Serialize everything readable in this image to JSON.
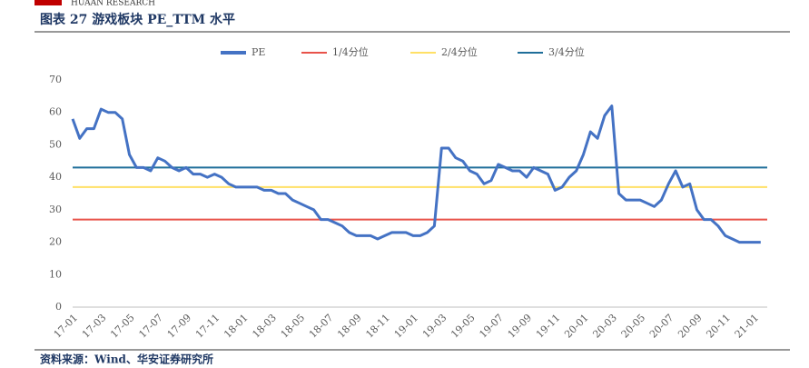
{
  "header": {
    "brand": "HUAAN RESEARCH"
  },
  "chart_data": {
    "type": "line",
    "title": "图表 27   游戏板块 PE_TTM 水平",
    "categories": [
      "17-01",
      null,
      null,
      null,
      "17-03",
      null,
      null,
      null,
      "17-05",
      null,
      null,
      null,
      "17-07",
      null,
      null,
      null,
      "17-09",
      null,
      null,
      null,
      "17-11",
      null,
      null,
      null,
      "18-01",
      null,
      null,
      null,
      "18-03",
      null,
      null,
      null,
      "18-05",
      null,
      null,
      null,
      "18-07",
      null,
      null,
      null,
      "18-09",
      null,
      null,
      null,
      "18-11",
      null,
      null,
      null,
      "19-01",
      null,
      null,
      null,
      "19-03",
      null,
      null,
      null,
      "19-05",
      null,
      null,
      null,
      "19-07",
      null,
      null,
      null,
      "19-09",
      null,
      null,
      null,
      "19-11",
      null,
      null,
      null,
      "20-01",
      null,
      null,
      null,
      "20-03",
      null,
      null,
      null,
      "20-05",
      null,
      null,
      null,
      "20-07",
      null,
      null,
      null,
      "20-09",
      null,
      null,
      null,
      "20-11",
      null,
      null,
      null,
      "21-01",
      null
    ],
    "series": [
      {
        "name": "PE",
        "color": "#4472c4",
        "values": [
          58,
          52,
          55,
          55,
          61,
          60,
          60,
          58,
          47,
          43,
          43,
          42,
          46,
          45,
          43,
          42,
          43,
          41,
          41,
          40,
          41,
          40,
          38,
          37,
          37,
          37,
          37,
          36,
          36,
          35,
          35,
          33,
          32,
          31,
          30,
          27,
          27,
          26,
          25,
          23,
          22,
          22,
          22,
          21,
          22,
          23,
          23,
          23,
          22,
          22,
          23,
          25,
          49,
          49,
          46,
          45,
          42,
          41,
          38,
          39,
          44,
          43,
          42,
          42,
          40,
          43,
          42,
          41,
          36,
          37,
          40,
          42,
          47,
          54,
          52,
          59,
          62,
          35,
          33,
          33,
          33,
          32,
          31,
          33,
          38,
          42,
          37,
          38,
          30,
          27,
          27,
          25,
          22,
          21,
          20,
          20,
          20,
          20
        ]
      }
    ],
    "reference_lines": [
      {
        "name": "1/4分位",
        "color": "#e8534a",
        "value": 27
      },
      {
        "name": "2/4分位",
        "color": "#ffe066",
        "value": 37
      },
      {
        "name": "3/4分位",
        "color": "#1f6e9a",
        "value": 43
      }
    ],
    "ylim": [
      0,
      70
    ],
    "yticks": [
      0,
      10,
      20,
      30,
      40,
      50,
      60,
      70
    ],
    "legend": "top",
    "source": "资料来源：Wind、华安证券研究所"
  }
}
